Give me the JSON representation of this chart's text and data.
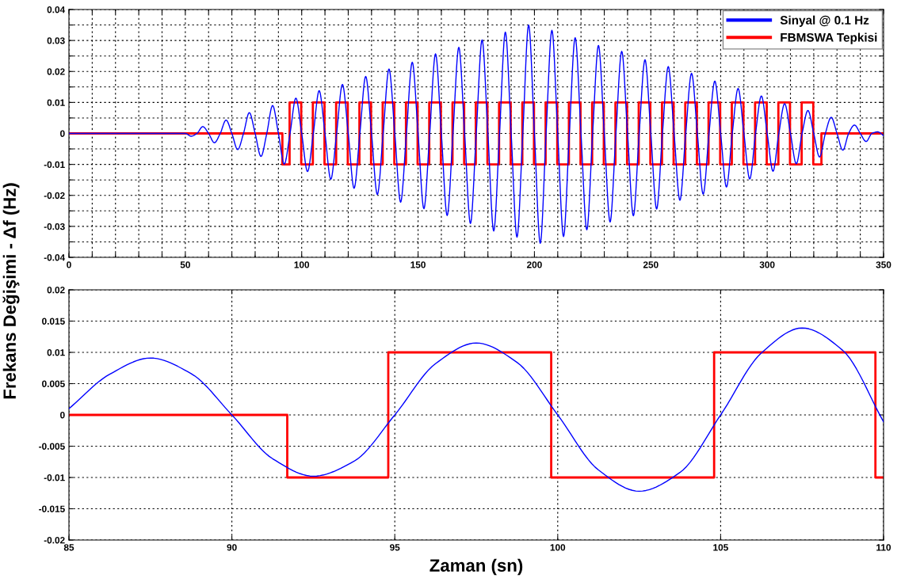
{
  "chart_data": [
    {
      "type": "line",
      "ylabel": "Frekans Değişimi - Δf (Hz)",
      "xlim": [
        0,
        350
      ],
      "ylim": [
        -0.04,
        0.04
      ],
      "xticks": [
        0,
        {
          "value": 10,
          "label": null
        },
        {
          "value": 20,
          "label": null
        },
        {
          "value": 30,
          "label": null
        },
        {
          "value": 40,
          "label": null
        },
        50,
        {
          "value": 60,
          "label": null
        },
        {
          "value": 70,
          "label": null
        },
        {
          "value": 80,
          "label": null
        },
        {
          "value": 90,
          "label": null
        },
        100,
        {
          "value": 110,
          "label": null
        },
        {
          "value": 120,
          "label": null
        },
        {
          "value": 130,
          "label": null
        },
        {
          "value": 140,
          "label": null
        },
        150,
        {
          "value": 160,
          "label": null
        },
        {
          "value": 170,
          "label": null
        },
        {
          "value": 180,
          "label": null
        },
        {
          "value": 190,
          "label": null
        },
        200,
        {
          "value": 210,
          "label": null
        },
        {
          "value": 220,
          "label": null
        },
        {
          "value": 230,
          "label": null
        },
        {
          "value": 240,
          "label": null
        },
        250,
        {
          "value": 260,
          "label": null
        },
        {
          "value": 270,
          "label": null
        },
        {
          "value": 280,
          "label": null
        },
        {
          "value": 290,
          "label": null
        },
        300,
        {
          "value": 310,
          "label": null
        },
        {
          "value": 320,
          "label": null
        },
        {
          "value": 330,
          "label": null
        },
        {
          "value": 340,
          "label": null
        },
        350
      ],
      "yticks": [
        -0.04,
        {
          "value": -0.035,
          "label": null
        },
        -0.03,
        {
          "value": -0.025,
          "label": null
        },
        -0.02,
        {
          "value": -0.015,
          "label": null
        },
        -0.01,
        {
          "value": -0.005,
          "label": null
        },
        0,
        {
          "value": 0.005,
          "label": null
        },
        0.01,
        {
          "value": 0.015,
          "label": null
        },
        0.02,
        {
          "value": 0.025,
          "label": null
        },
        0.03,
        {
          "value": 0.035,
          "label": null
        },
        0.04
      ],
      "grid": true,
      "legend": "top right",
      "marker": "none",
      "line_style": "solid",
      "series": [
        {
          "name": "Sinyal @ 0.1 Hz",
          "color": "#0000ff",
          "x": [
            0,
            50,
            52.5,
            55,
            57.5,
            60,
            62.5,
            65,
            67.5,
            70,
            72.5,
            75,
            77.5,
            80,
            82.5,
            85,
            87.5,
            90,
            92.5,
            95,
            97.5,
            100,
            102.5,
            105,
            107.5,
            110,
            112.5,
            115,
            117.5,
            120,
            122.5,
            125,
            127.5,
            130,
            132.5,
            135,
            137.5,
            140,
            142.5,
            145,
            147.5,
            150,
            152.5,
            155,
            157.5,
            160,
            162.5,
            165,
            167.5,
            170,
            172.5,
            175,
            177.5,
            180,
            182.5,
            185,
            187.5,
            190,
            192.5,
            195,
            197.5,
            200,
            202.5,
            205,
            207.5,
            210,
            212.5,
            215,
            217.5,
            220,
            222.5,
            225,
            227.5,
            230,
            232.5,
            235,
            237.5,
            240,
            242.5,
            245,
            247.5,
            250,
            252.5,
            255,
            257.5,
            260,
            262.5,
            265,
            267.5,
            270,
            272.5,
            275,
            277.5,
            280,
            282.5,
            285,
            287.5,
            290,
            292.5,
            295,
            297.5,
            300,
            302.5,
            305,
            307.5,
            310,
            312.5,
            315,
            317.5,
            320,
            322.5,
            325,
            327.5,
            330,
            332.5,
            335,
            337.5,
            340,
            342.5,
            345,
            347.5,
            350
          ],
          "values": [
            0,
            0,
            -0.0009,
            0,
            0.0022,
            0,
            -0.003,
            0,
            0.0043,
            0,
            -0.0052,
            0,
            0.0067,
            0,
            -0.0074,
            0,
            0.009,
            0,
            -0.0099,
            0,
            0.0114,
            0,
            -0.0123,
            0,
            0.0138,
            0,
            -0.0148,
            0,
            0.0158,
            0,
            -0.0177,
            0,
            0.0184,
            0,
            -0.0197,
            0,
            0.0208,
            0,
            -0.0222,
            0,
            0.023,
            0,
            -0.0243,
            0,
            0.0257,
            0,
            -0.0265,
            0,
            0.0278,
            0,
            -0.0291,
            0,
            0.0302,
            0,
            -0.0315,
            0,
            0.0327,
            0,
            -0.0335,
            0,
            0.035,
            0,
            -0.0355,
            0,
            0.0333,
            0,
            -0.0333,
            0,
            0.0309,
            0,
            -0.0311,
            0,
            0.0284,
            0,
            -0.0286,
            0,
            0.0265,
            0,
            -0.0266,
            0,
            0.0238,
            0,
            -0.0244,
            0,
            0.0216,
            0,
            -0.0216,
            0,
            0.0194,
            0,
            -0.0196,
            0,
            0.0169,
            0,
            -0.0173,
            0,
            0.0145,
            0,
            -0.0147,
            0,
            0.0121,
            0,
            -0.0122,
            0,
            0.0096,
            0,
            -0.0098,
            0,
            0.0074,
            0,
            -0.0076,
            0,
            0.0052,
            0,
            -0.0054,
            0,
            0.0027,
            0,
            -0.0026,
            0,
            0.0005,
            -0.0007
          ]
        },
        {
          "name": "FBMSWA Tepkisi",
          "color": "#ff0000",
          "type": "step",
          "x": [
            0,
            91.7,
            94.8,
            99.8,
            104.8,
            109.8,
            114.8,
            119.8,
            124.8,
            129.8,
            134.8,
            139.8,
            144.8,
            149.8,
            154.8,
            159.8,
            164.8,
            169.8,
            174.8,
            179.8,
            184.8,
            189.8,
            194.8,
            199.8,
            204.8,
            209.8,
            214.8,
            219.8,
            224.8,
            229.8,
            234.8,
            239.8,
            244.8,
            249.8,
            254.8,
            259.8,
            264.8,
            269.8,
            274.8,
            279.8,
            284.8,
            289.8,
            294.8,
            299.8,
            304.8,
            309.8,
            314.8,
            319.8,
            323.3,
            350
          ],
          "values": [
            0,
            -0.01,
            0.01,
            -0.01,
            0.01,
            -0.01,
            0.01,
            -0.01,
            0.01,
            -0.01,
            0.01,
            -0.01,
            0.01,
            -0.01,
            0.01,
            -0.01,
            0.01,
            -0.01,
            0.01,
            -0.01,
            0.01,
            -0.01,
            0.01,
            -0.01,
            0.01,
            -0.01,
            0.01,
            -0.01,
            0.01,
            -0.01,
            0.01,
            -0.01,
            0.01,
            -0.01,
            0.01,
            -0.01,
            0.01,
            -0.01,
            0.01,
            -0.01,
            0.01,
            -0.01,
            0.01,
            -0.01,
            0.01,
            -0.01,
            0.01,
            -0.01,
            0,
            0
          ]
        }
      ]
    },
    {
      "type": "line",
      "xlabel": "Zaman (sn)",
      "xlim": [
        85,
        110
      ],
      "ylim": [
        -0.02,
        0.02
      ],
      "xticks": [
        85,
        90,
        95,
        100,
        105,
        110
      ],
      "yticks": [
        -0.02,
        -0.015,
        -0.01,
        -0.005,
        0,
        0.005,
        0.01,
        0.015,
        0.02
      ],
      "grid": true,
      "marker": "none",
      "line_style": "solid",
      "series": [
        {
          "color": "#0000ff",
          "x": [
            85,
            86.25,
            87.5,
            88.75,
            90,
            91.25,
            92.5,
            93.75,
            95,
            96.25,
            97.5,
            98.75,
            100,
            101.25,
            102.5,
            103.75,
            105,
            106.25,
            107.5,
            108.75,
            110
          ],
          "values": [
            0.001,
            0.0065,
            0.0091,
            0.0066,
            0,
            -0.007,
            -0.0098,
            -0.0074,
            0,
            0.0082,
            0.0115,
            0.0084,
            0,
            -0.0088,
            -0.0122,
            -0.0092,
            0,
            0.0099,
            0.0139,
            0.0103,
            -0.0011
          ]
        },
        {
          "color": "#ff0000",
          "type": "step",
          "x": [
            85,
            91.7,
            94.8,
            99.8,
            104.8,
            109.75,
            110
          ],
          "values": [
            0,
            -0.01,
            0.01,
            -0.01,
            0.01,
            -0.01,
            -0.01
          ]
        }
      ]
    }
  ]
}
